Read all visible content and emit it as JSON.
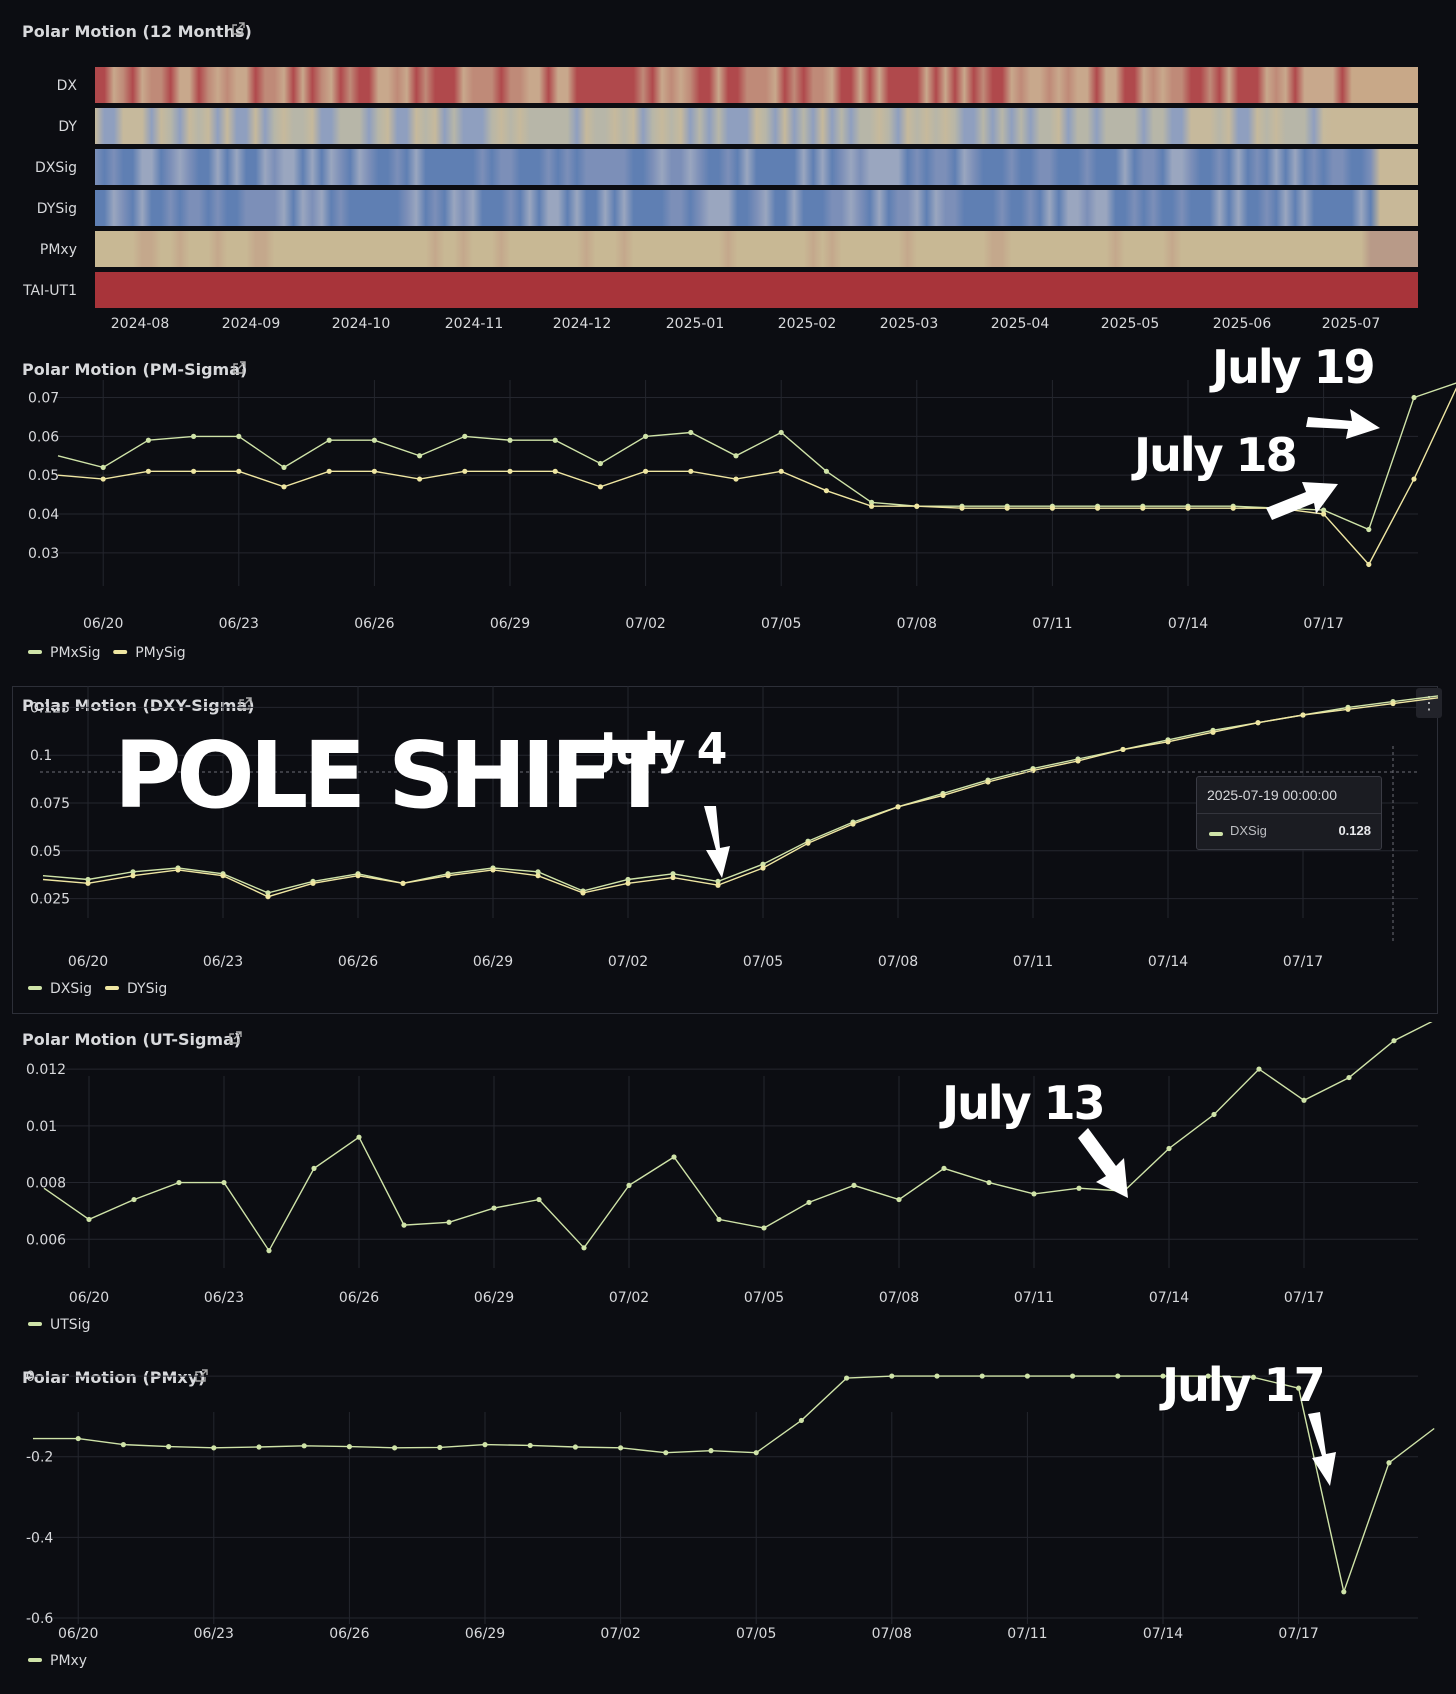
{
  "colors": {
    "bg": "#0c0d12",
    "grid": "#24262e",
    "axis_text": "#d8d9dc",
    "series_green": "#cfe3a8",
    "series_yellow": "#efe6a2",
    "heat_red": "#a8343a",
    "heat_beige": "#c8b894",
    "heat_blue": "#5f7fb3"
  },
  "heatmap": {
    "title": "Polar Motion (12 Months)",
    "rows": [
      "DX",
      "DY",
      "DXSig",
      "DYSig",
      "PMxy",
      "TAI-UT1"
    ],
    "months": [
      "2024-08",
      "2024-09",
      "2024-10",
      "2024-11",
      "2024-12",
      "2025-01",
      "2025-02",
      "2025-03",
      "2025-04",
      "2025-05",
      "2025-06",
      "2025-07"
    ],
    "row_themes": [
      "red-beige",
      "beige-blue",
      "blue",
      "blue",
      "beige",
      "red"
    ]
  },
  "pm_sigma": {
    "title": "Polar Motion (PM-Sigma)",
    "legend": [
      "PMxSig",
      "PMySig"
    ],
    "annotation_top": "July 19",
    "annotation_mid": "July 18"
  },
  "dxy_sigma": {
    "title": "Polar Motion (DXY-Sigma)",
    "legend": [
      "DXSig",
      "DYSig"
    ],
    "headline": "POLE SHIFT",
    "annotation": "July 4",
    "tooltip": {
      "time": "2025-07-19 00:00:00",
      "series": "DXSig",
      "value": "0.128"
    },
    "menu_glyph": "⋮"
  },
  "ut_sigma": {
    "title": "Polar Motion (UT-Sigma)",
    "legend": [
      "UTSig"
    ],
    "annotation": "July 13"
  },
  "pmxy": {
    "title": "Polar Motion (PMxy)",
    "legend": [
      "PMxy"
    ],
    "annotation": "July 17"
  },
  "chart_data": [
    {
      "type": "heatmap",
      "title": "Polar Motion (12 Months)",
      "rows": [
        "DX",
        "DY",
        "DXSig",
        "DYSig",
        "PMxy",
        "TAI-UT1"
      ],
      "x_ticks": [
        "2024-08",
        "2024-09",
        "2024-10",
        "2024-11",
        "2024-12",
        "2025-01",
        "2025-02",
        "2025-03",
        "2025-04",
        "2025-05",
        "2025-06",
        "2025-07"
      ]
    },
    {
      "type": "line",
      "title": "Polar Motion (PM-Sigma)",
      "x": [
        "06/19",
        "06/20",
        "06/21",
        "06/22",
        "06/23",
        "06/24",
        "06/25",
        "06/26",
        "06/27",
        "06/28",
        "06/29",
        "06/30",
        "07/01",
        "07/02",
        "07/03",
        "07/04",
        "07/05",
        "07/06",
        "07/07",
        "07/08",
        "07/09",
        "07/10",
        "07/11",
        "07/12",
        "07/13",
        "07/14",
        "07/15",
        "07/16",
        "07/17",
        "07/18",
        "07/19",
        "07/20"
      ],
      "x_ticks": [
        "06/20",
        "06/23",
        "06/26",
        "06/29",
        "07/02",
        "07/05",
        "07/08",
        "07/11",
        "07/14",
        "07/17"
      ],
      "y_ticks": [
        0.03,
        0.04,
        0.05,
        0.06,
        0.07
      ],
      "ylim": [
        0.023,
        0.074
      ],
      "series": [
        {
          "name": "PMxSig",
          "values": [
            0.055,
            0.052,
            0.059,
            0.06,
            0.06,
            0.052,
            0.059,
            0.059,
            0.055,
            0.06,
            0.059,
            0.059,
            0.053,
            0.06,
            0.061,
            0.055,
            0.061,
            0.051,
            0.043,
            0.042,
            0.042,
            0.042,
            0.042,
            0.042,
            0.042,
            0.042,
            0.042,
            0.0415,
            0.041,
            0.036,
            0.07,
            0.074
          ]
        },
        {
          "name": "PMySig",
          "values": [
            0.05,
            0.049,
            0.051,
            0.051,
            0.051,
            0.047,
            0.051,
            0.051,
            0.049,
            0.051,
            0.051,
            0.051,
            0.047,
            0.051,
            0.051,
            0.049,
            0.051,
            0.046,
            0.042,
            0.042,
            0.0415,
            0.0415,
            0.0415,
            0.0415,
            0.0415,
            0.0415,
            0.0415,
            0.0415,
            0.04,
            0.027,
            0.049,
            0.074
          ]
        }
      ]
    },
    {
      "type": "line",
      "title": "Polar Motion (DXY-Sigma)",
      "x": [
        "06/19",
        "06/20",
        "06/21",
        "06/22",
        "06/23",
        "06/24",
        "06/25",
        "06/26",
        "06/27",
        "06/28",
        "06/29",
        "06/30",
        "07/01",
        "07/02",
        "07/03",
        "07/04",
        "07/05",
        "07/06",
        "07/07",
        "07/08",
        "07/09",
        "07/10",
        "07/11",
        "07/12",
        "07/13",
        "07/14",
        "07/15",
        "07/16",
        "07/17",
        "07/18",
        "07/19",
        "07/20"
      ],
      "x_ticks": [
        "06/20",
        "06/23",
        "06/26",
        "06/29",
        "07/02",
        "07/05",
        "07/08",
        "07/11",
        "07/14",
        "07/17"
      ],
      "y_ticks": [
        0.025,
        0.05,
        0.075,
        0.1,
        0.125
      ],
      "ylim": [
        0.018,
        0.132
      ],
      "series": [
        {
          "name": "DXSig",
          "values": [
            0.037,
            0.035,
            0.039,
            0.041,
            0.038,
            0.028,
            0.034,
            0.038,
            0.033,
            0.038,
            0.041,
            0.039,
            0.029,
            0.035,
            0.038,
            0.034,
            0.043,
            0.055,
            0.065,
            0.073,
            0.08,
            0.087,
            0.093,
            0.098,
            0.103,
            0.108,
            0.113,
            0.117,
            0.121,
            0.125,
            0.128,
            0.131
          ]
        },
        {
          "name": "DYSig",
          "values": [
            0.035,
            0.033,
            0.037,
            0.04,
            0.037,
            0.026,
            0.033,
            0.037,
            0.033,
            0.037,
            0.04,
            0.037,
            0.028,
            0.033,
            0.036,
            0.032,
            0.041,
            0.054,
            0.064,
            0.073,
            0.079,
            0.086,
            0.092,
            0.097,
            0.103,
            0.107,
            0.112,
            0.117,
            0.121,
            0.124,
            0.127,
            0.13
          ]
        }
      ]
    },
    {
      "type": "line",
      "title": "Polar Motion (UT-Sigma)",
      "x": [
        "06/19",
        "06/20",
        "06/21",
        "06/22",
        "06/23",
        "06/24",
        "06/25",
        "06/26",
        "06/27",
        "06/28",
        "06/29",
        "06/30",
        "07/01",
        "07/02",
        "07/03",
        "07/04",
        "07/05",
        "07/06",
        "07/07",
        "07/08",
        "07/09",
        "07/10",
        "07/11",
        "07/12",
        "07/13",
        "07/14",
        "07/15",
        "07/16",
        "07/17",
        "07/18",
        "07/19",
        "07/20"
      ],
      "x_ticks": [
        "06/20",
        "06/23",
        "06/26",
        "06/29",
        "07/02",
        "07/05",
        "07/08",
        "07/11",
        "07/14",
        "07/17"
      ],
      "y_ticks": [
        0.006,
        0.008,
        0.01,
        0.012
      ],
      "ylim": [
        0.0052,
        0.0138
      ],
      "series": [
        {
          "name": "UTSig",
          "values": [
            0.0078,
            0.0067,
            0.0074,
            0.008,
            0.008,
            0.0056,
            0.0085,
            0.0096,
            0.0065,
            0.0066,
            0.0071,
            0.0074,
            0.0057,
            0.0079,
            0.0089,
            0.0067,
            0.0064,
            0.0073,
            0.0079,
            0.0074,
            0.0085,
            0.008,
            0.0076,
            0.0078,
            0.0077,
            0.0092,
            0.0104,
            0.012,
            0.0109,
            0.0117,
            0.013,
            0.0138
          ]
        }
      ]
    },
    {
      "type": "line",
      "title": "Polar Motion (PMxy)",
      "x": [
        "06/19",
        "06/20",
        "06/21",
        "06/22",
        "06/23",
        "06/24",
        "06/25",
        "06/26",
        "06/27",
        "06/28",
        "06/29",
        "06/30",
        "07/01",
        "07/02",
        "07/03",
        "07/04",
        "07/05",
        "07/06",
        "07/07",
        "07/08",
        "07/09",
        "07/10",
        "07/11",
        "07/12",
        "07/13",
        "07/14",
        "07/15",
        "07/16",
        "07/17",
        "07/18",
        "07/19",
        "07/20"
      ],
      "x_ticks": [
        "06/20",
        "06/23",
        "06/26",
        "06/29",
        "07/02",
        "07/05",
        "07/08",
        "07/11",
        "07/14",
        "07/17"
      ],
      "y_ticks": [
        0,
        -0.2,
        -0.4,
        -0.6
      ],
      "ylim": [
        -0.6,
        0.02
      ],
      "series": [
        {
          "name": "PMxy",
          "values": [
            -0.155,
            -0.155,
            -0.17,
            -0.175,
            -0.178,
            -0.176,
            -0.173,
            -0.175,
            -0.178,
            -0.177,
            -0.17,
            -0.172,
            -0.176,
            -0.178,
            -0.19,
            -0.185,
            -0.19,
            -0.11,
            -0.005,
            0,
            0,
            0,
            0,
            0,
            0,
            0,
            0,
            -0.003,
            -0.03,
            -0.535,
            -0.215,
            -0.13
          ]
        }
      ]
    }
  ]
}
